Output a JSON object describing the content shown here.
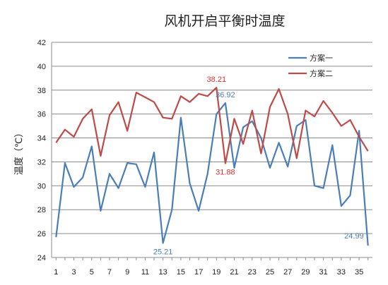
{
  "chart_data": {
    "type": "line",
    "title": "风机开启平衡时温度",
    "ylabel": "温度（℃）",
    "xlabel": "",
    "x": [
      1,
      2,
      3,
      4,
      5,
      6,
      7,
      8,
      9,
      10,
      11,
      12,
      13,
      14,
      15,
      16,
      17,
      18,
      19,
      20,
      21,
      22,
      23,
      24,
      25,
      26,
      27,
      28,
      29,
      30,
      31,
      32,
      33,
      34,
      35,
      36
    ],
    "x_ticks": [
      1,
      3,
      5,
      7,
      9,
      11,
      13,
      15,
      17,
      19,
      21,
      23,
      25,
      27,
      29,
      31,
      33,
      35
    ],
    "ylim": [
      24,
      42
    ],
    "y_ticks": [
      24,
      26,
      28,
      30,
      32,
      34,
      36,
      38,
      40,
      42
    ],
    "grid": "horizontal",
    "legend": "top-right",
    "series": [
      {
        "name": "方案一",
        "color": "#4a7ebb",
        "values": [
          25.7,
          31.9,
          29.9,
          30.7,
          33.3,
          27.9,
          31.0,
          29.8,
          31.9,
          31.8,
          29.9,
          32.8,
          25.21,
          28.0,
          35.7,
          30.2,
          27.9,
          31.0,
          36.0,
          36.92,
          31.5,
          34.9,
          35.4,
          34.0,
          31.5,
          33.6,
          31.6,
          35.0,
          35.5,
          30.0,
          29.8,
          33.4,
          28.3,
          29.2,
          34.6,
          24.99
        ]
      },
      {
        "name": "方案二",
        "color": "#be4b48",
        "values": [
          33.6,
          34.7,
          34.1,
          35.6,
          36.4,
          32.5,
          35.9,
          37.0,
          34.6,
          37.8,
          37.4,
          37.0,
          35.7,
          35.6,
          37.5,
          37.0,
          37.7,
          37.5,
          38.21,
          31.88,
          35.6,
          33.5,
          36.3,
          32.7,
          36.6,
          38.1,
          36.0,
          32.3,
          36.3,
          35.8,
          37.1,
          36.1,
          35.0,
          35.5,
          34.1,
          32.9
        ]
      }
    ],
    "annotations": [
      {
        "text": "38.21",
        "x": 19,
        "series": 1,
        "color": "#e03030",
        "pos": "above"
      },
      {
        "text": "36.92",
        "x": 20,
        "series": 0,
        "color": "#4a7ebb",
        "pos": "above"
      },
      {
        "text": "31.88",
        "x": 20,
        "series": 1,
        "color": "#e03030",
        "pos": "below"
      },
      {
        "text": "25.21",
        "x": 13,
        "series": 0,
        "color": "#4a7ebb",
        "pos": "below"
      },
      {
        "text": "24.99",
        "x": 36,
        "series": 0,
        "color": "#4a7ebb",
        "pos": "left"
      }
    ]
  }
}
